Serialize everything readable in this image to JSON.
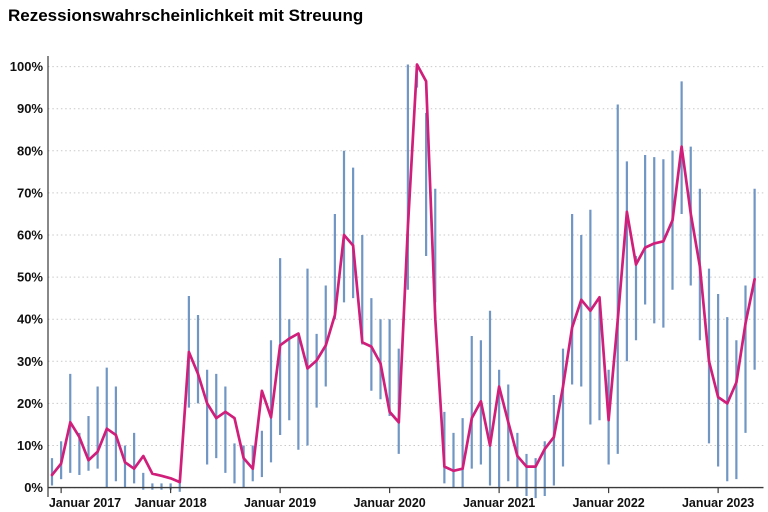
{
  "chart_data": {
    "type": "line",
    "title": "Rezessionswahrscheinlichkeit mit Streuung",
    "ylim": [
      -2.5,
      102.75
    ],
    "grid": "dotted horizontal lines every 10%",
    "legend": "none",
    "y_ticks": {
      "values": [
        0,
        10,
        20,
        30,
        40,
        50,
        60,
        70,
        80,
        90,
        100
      ],
      "labels": [
        "0%",
        "10%",
        "20%",
        "30%",
        "40%",
        "50%",
        "60%",
        "70%",
        "80%",
        "90%",
        "100%"
      ]
    },
    "x": {
      "n_points": 78,
      "description": "monthly points, Dez 2016 bis Mai 2023",
      "tick_indices": [
        1,
        13,
        25,
        37,
        49,
        61,
        73
      ],
      "tick_labels": [
        "Januar 2017",
        "Januar 2018",
        "Januar 2019",
        "Januar 2020",
        "Januar 2021",
        "Januar 2022",
        "Januar 2023"
      ]
    },
    "series": [
      {
        "name": "Rezessionswahrscheinlichkeit",
        "type": "line",
        "color": "#d01e7b",
        "values": [
          3,
          5.7,
          15.5,
          12,
          6.5,
          8.5,
          14,
          12.5,
          6,
          4.5,
          7.5,
          3.3,
          2.8,
          2.2,
          1.3,
          32.2,
          27,
          20,
          16.5,
          18,
          16.5,
          7,
          4.5,
          23,
          16.7,
          33.8,
          35.4,
          36.6,
          28.3,
          30.2,
          33.8,
          41,
          60,
          57.5,
          34.5,
          33.5,
          29.5,
          18,
          15.5,
          62,
          100.5,
          96.5,
          40,
          5,
          4,
          4.5,
          16.5,
          20.5,
          10,
          24,
          15.5,
          7.5,
          5,
          5,
          9.2,
          12,
          24,
          38,
          44.6,
          42,
          45.2,
          16,
          40,
          65.5,
          53,
          57,
          58,
          58.5,
          63.5,
          81,
          65,
          52.5,
          30,
          21.5,
          20,
          25,
          39,
          49.5
        ]
      },
      {
        "name": "Streuung",
        "type": "error-bars",
        "color": "#7096c4",
        "lo": [
          0.5,
          2,
          3.5,
          3,
          4,
          4.5,
          0,
          1.5,
          0,
          1,
          -0.5,
          -0.5,
          -0.5,
          -0.5,
          -1,
          19,
          20,
          5.5,
          7,
          3.5,
          1,
          0,
          1.5,
          2.5,
          6,
          12.5,
          16,
          9,
          10,
          19,
          24,
          40,
          44,
          45,
          34,
          23,
          21,
          17,
          8,
          47,
          95,
          55,
          44,
          1,
          0,
          0,
          4.5,
          5.5,
          0.5,
          0,
          1.5,
          0,
          -2,
          -2.5,
          -2,
          0.5,
          5,
          24.5,
          24,
          15,
          16,
          5.5,
          8,
          30,
          35,
          43.5,
          39,
          38,
          47,
          65,
          48,
          35,
          10.5,
          5,
          1.5,
          2,
          13,
          28
        ],
        "hi": [
          7,
          11,
          27,
          13,
          17,
          24,
          28.5,
          24,
          10,
          13,
          3.5,
          1,
          1,
          1,
          2,
          45.5,
          41,
          28,
          27,
          24,
          10.5,
          10,
          10,
          13.5,
          35,
          54.5,
          40,
          36,
          52,
          36.5,
          48,
          65,
          80,
          76,
          60,
          45,
          40,
          40,
          33,
          100.5,
          100.5,
          89,
          71,
          18,
          13,
          16.5,
          36,
          35,
          42,
          28,
          24.5,
          13,
          8,
          7,
          11,
          22,
          33,
          65,
          60,
          66,
          45,
          28,
          91,
          77.5,
          55,
          79,
          78.5,
          78,
          80,
          96.5,
          81,
          71,
          52,
          46,
          40.5,
          35,
          48,
          71
        ]
      }
    ],
    "colors": {
      "line": "#d01e7b",
      "error_bar": "#7096c4",
      "gridline": "#c9c9c9",
      "axis": "#3a3a3a",
      "tick_text": "#111111",
      "background": "#ffffff"
    }
  }
}
